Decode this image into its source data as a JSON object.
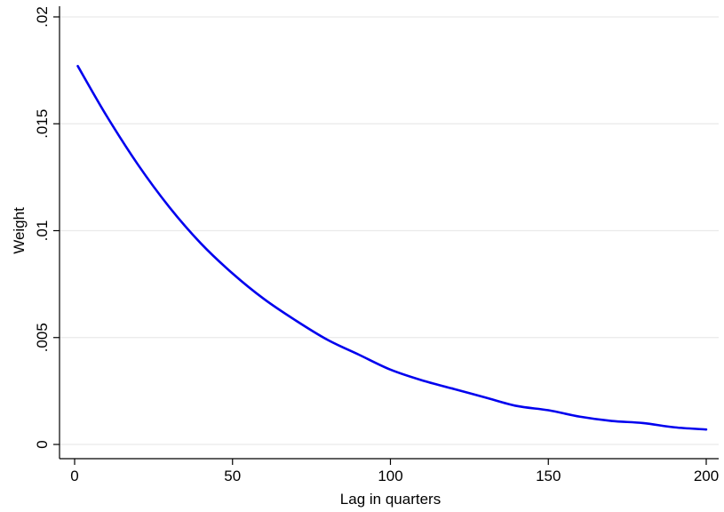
{
  "chart_data": {
    "type": "line",
    "title": "",
    "xlabel": "Lag in quarters",
    "ylabel": "Weight",
    "xlim": [
      0,
      200
    ],
    "ylim": [
      0,
      0.02
    ],
    "grid": true,
    "x_ticks": [
      {
        "value": 0,
        "label": "0"
      },
      {
        "value": 50,
        "label": "50"
      },
      {
        "value": 100,
        "label": "100"
      },
      {
        "value": 150,
        "label": "150"
      },
      {
        "value": 200,
        "label": "200"
      }
    ],
    "y_ticks": [
      {
        "value": 0,
        "label": "0"
      },
      {
        "value": 0.005,
        "label": ".005"
      },
      {
        "value": 0.01,
        "label": ".01"
      },
      {
        "value": 0.015,
        "label": ".015"
      },
      {
        "value": 0.02,
        "label": ".02"
      }
    ],
    "series": [
      {
        "color": "#0000ee",
        "x": [
          1,
          10,
          20,
          30,
          40,
          50,
          60,
          70,
          80,
          90,
          100,
          110,
          120,
          130,
          140,
          150,
          160,
          170,
          180,
          190,
          200
        ],
        "y": [
          0.0177,
          0.0154,
          0.0131,
          0.0111,
          0.0094,
          0.008,
          0.0068,
          0.0058,
          0.0049,
          0.0042,
          0.0035,
          0.003,
          0.0026,
          0.0022,
          0.0018,
          0.0016,
          0.0013,
          0.0011,
          0.001,
          0.0008,
          0.0007
        ]
      }
    ]
  }
}
